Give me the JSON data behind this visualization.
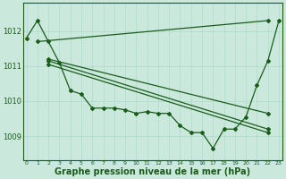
{
  "bg_color": "#cbe8dc",
  "line_color": "#1a5c1a",
  "marker": "D",
  "markersize": 2.0,
  "linewidth": 0.9,
  "xlabel": "Graphe pression niveau de la mer (hPa)",
  "xlabel_fontsize": 7,
  "yticks": [
    1009,
    1010,
    1011,
    1012
  ],
  "ylim": [
    1008.3,
    1012.8
  ],
  "xlim": [
    -0.3,
    23.3
  ],
  "xticks": [
    0,
    1,
    2,
    3,
    4,
    5,
    6,
    7,
    8,
    9,
    10,
    11,
    12,
    13,
    14,
    15,
    16,
    17,
    18,
    19,
    20,
    21,
    22,
    23
  ],
  "series_detailed": {
    "x": [
      0,
      1,
      2,
      3,
      4,
      5,
      6,
      7,
      8,
      9,
      10,
      11,
      12,
      13,
      14,
      15,
      16,
      17,
      18,
      19,
      20,
      21,
      22,
      23
    ],
    "y": [
      1011.8,
      1012.3,
      1011.7,
      1011.1,
      1010.3,
      1010.2,
      1009.8,
      1009.8,
      1009.8,
      1009.75,
      1009.65,
      1009.7,
      1009.65,
      1009.65,
      1009.3,
      1009.1,
      1009.1,
      1008.65,
      1009.2,
      1009.2,
      1009.55,
      1010.45,
      1011.15,
      1012.3
    ]
  },
  "series_fan": [
    {
      "x": [
        1,
        22
      ],
      "y": [
        1011.7,
        1012.3
      ]
    },
    {
      "x": [
        2,
        22
      ],
      "y": [
        1011.2,
        1009.65
      ]
    },
    {
      "x": [
        2,
        22
      ],
      "y": [
        1011.15,
        1009.2
      ]
    },
    {
      "x": [
        2,
        22
      ],
      "y": [
        1011.05,
        1009.1
      ]
    }
  ]
}
